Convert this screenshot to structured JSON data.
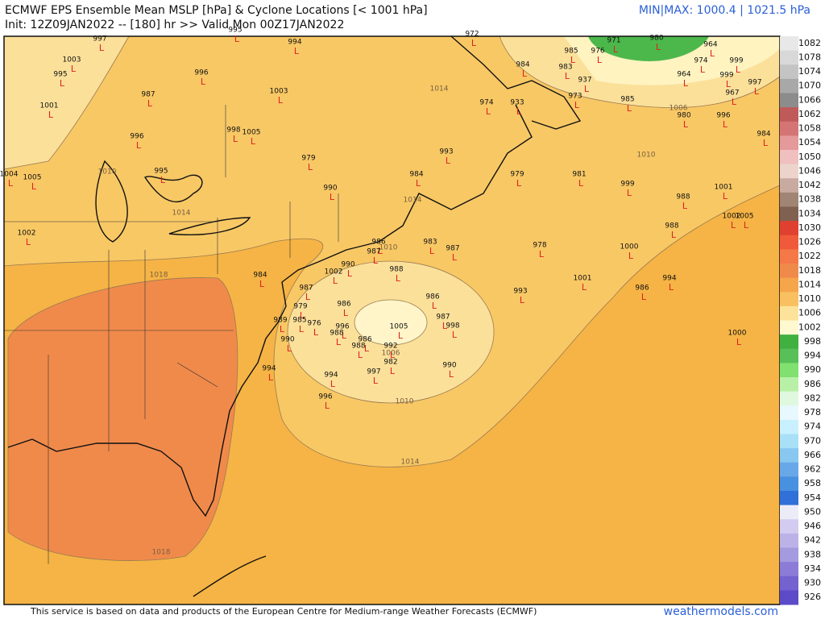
{
  "header": {
    "title": "ECMWF EPS Ensemble Mean MSLP [hPa] & Cyclone Locations [< 1001 hPa]",
    "init": "Init: 12Z09JAN2022 -- [180] hr >> Valid Mon 00Z17JAN2022",
    "minmax": "MIN|MAX: 1000.4 | 1021.5 hPa"
  },
  "cyclone_symbol": "L",
  "cyclones": [
    997,
    994,
    972,
    995,
    971,
    980,
    964,
    1003,
    985,
    976,
    984,
    974,
    999,
    995,
    996,
    983,
    964,
    999,
    997,
    987,
    1003,
    937,
    973,
    967,
    985,
    1001,
    974,
    933,
    980,
    996,
    998,
    1005,
    996,
    984,
    979,
    993,
    995,
    1004,
    1005,
    984,
    979,
    981,
    999,
    1001,
    990,
    988,
    1002,
    1002,
    1005,
    988,
    986,
    983,
    987,
    978,
    1000,
    987,
    990,
    988,
    1002,
    984,
    1001,
    994,
    986,
    993,
    987,
    986,
    986,
    979,
    987,
    998,
    989,
    976,
    985,
    996,
    1005,
    988,
    986,
    988,
    990,
    992,
    982,
    1000,
    990,
    994,
    994,
    997,
    996
  ],
  "contour_labels": [
    1010,
    1014,
    1018,
    1014,
    1006,
    1010,
    1014,
    1010,
    1006,
    1010,
    1014,
    1018
  ],
  "colorbar": [
    1082,
    1078,
    1074,
    1070,
    1066,
    1062,
    1058,
    1054,
    1050,
    1046,
    1042,
    1038,
    1034,
    1030,
    1026,
    1022,
    1018,
    1014,
    1010,
    1006,
    1002,
    998,
    994,
    990,
    986,
    982,
    978,
    974,
    970,
    966,
    962,
    958,
    954,
    950,
    946,
    942,
    938,
    934,
    930,
    926
  ],
  "footer": {
    "credit": "This service is based on data and products of the European Centre for Medium-range Weather Forecasts (ECMWF)",
    "brand": "weathermodels.com"
  }
}
